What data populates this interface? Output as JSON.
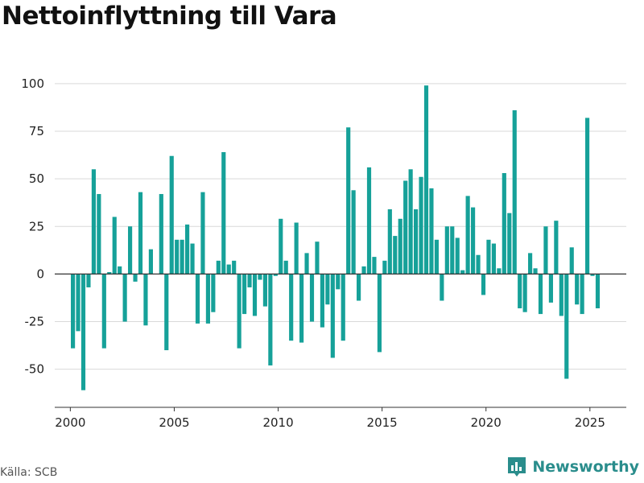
{
  "title": "Nettoinflyttning till Vara",
  "source": "Källa: SCB",
  "brand": {
    "name": "Newsworthy",
    "icon": "newsworthy-logo-icon",
    "color": "#2a8d8c"
  },
  "colors": {
    "bar": "#16a199",
    "grid": "#d9d9d9",
    "zero": "#333333"
  },
  "chart_data": {
    "type": "bar",
    "title": "Nettoinflyttning till Vara",
    "xlabel": "",
    "ylabel": "",
    "ylim": [
      -70,
      105
    ],
    "xlim": [
      1999.25,
      2026.75
    ],
    "yticks": [
      -50,
      -25,
      0,
      25,
      50,
      75,
      100
    ],
    "ytick_labels": [
      "-50",
      "-25",
      "0",
      "25",
      "50",
      "75",
      "100"
    ],
    "xticks": [
      2000,
      2005,
      2010,
      2015,
      2020,
      2025
    ],
    "xtick_labels": [
      "2000",
      "2005",
      "2010",
      "2015",
      "2020",
      "2025"
    ],
    "grid": true,
    "bar_width_years": 0.2,
    "x": [
      2000.125,
      2000.375,
      2000.625,
      2000.875,
      2001.125,
      2001.375,
      2001.625,
      2001.875,
      2002.125,
      2002.375,
      2002.625,
      2002.875,
      2003.125,
      2003.375,
      2003.625,
      2003.875,
      2004.125,
      2004.375,
      2004.625,
      2004.875,
      2005.125,
      2005.375,
      2005.625,
      2005.875,
      2006.125,
      2006.375,
      2006.625,
      2006.875,
      2007.125,
      2007.375,
      2007.625,
      2007.875,
      2008.125,
      2008.375,
      2008.625,
      2008.875,
      2009.125,
      2009.375,
      2009.625,
      2009.875,
      2010.125,
      2010.375,
      2010.625,
      2010.875,
      2011.125,
      2011.375,
      2011.625,
      2011.875,
      2012.125,
      2012.375,
      2012.625,
      2012.875,
      2013.125,
      2013.375,
      2013.625,
      2013.875,
      2014.125,
      2014.375,
      2014.625,
      2014.875,
      2015.125,
      2015.375,
      2015.625,
      2015.875,
      2016.125,
      2016.375,
      2016.625,
      2016.875,
      2017.125,
      2017.375,
      2017.625,
      2017.875,
      2018.125,
      2018.375,
      2018.625,
      2018.875,
      2019.125,
      2019.375,
      2019.625,
      2019.875,
      2020.125,
      2020.375,
      2020.625,
      2020.875,
      2021.125,
      2021.375,
      2021.625,
      2021.875,
      2022.125,
      2022.375,
      2022.625,
      2022.875,
      2023.125,
      2023.375,
      2023.625,
      2023.875,
      2024.125,
      2024.375,
      2024.625,
      2024.875,
      2025.125,
      2025.375
    ],
    "values": [
      -39,
      -30,
      -61,
      -7,
      55,
      42,
      -39,
      1,
      30,
      4,
      -25,
      25,
      -4,
      43,
      -27,
      13,
      0,
      42,
      -40,
      62,
      18,
      18,
      26,
      16,
      -26,
      43,
      -26,
      -20,
      7,
      64,
      5,
      7,
      -39,
      -21,
      -7,
      -22,
      -3,
      -17,
      -48,
      -1,
      29,
      7,
      -35,
      27,
      -36,
      11,
      -25,
      17,
      -28,
      -16,
      -44,
      -8,
      -35,
      77,
      44,
      -14,
      4,
      56,
      9,
      -41,
      7,
      34,
      20,
      29,
      49,
      55,
      34,
      51,
      99,
      45,
      18,
      -14,
      25,
      25,
      19,
      2,
      41,
      35,
      10,
      -11,
      18,
      16,
      3,
      53,
      32,
      86,
      -18,
      -20,
      11,
      3,
      -21,
      25,
      -15,
      28,
      -22,
      -55,
      14,
      -16,
      -21,
      82,
      -1,
      -18
    ]
  }
}
